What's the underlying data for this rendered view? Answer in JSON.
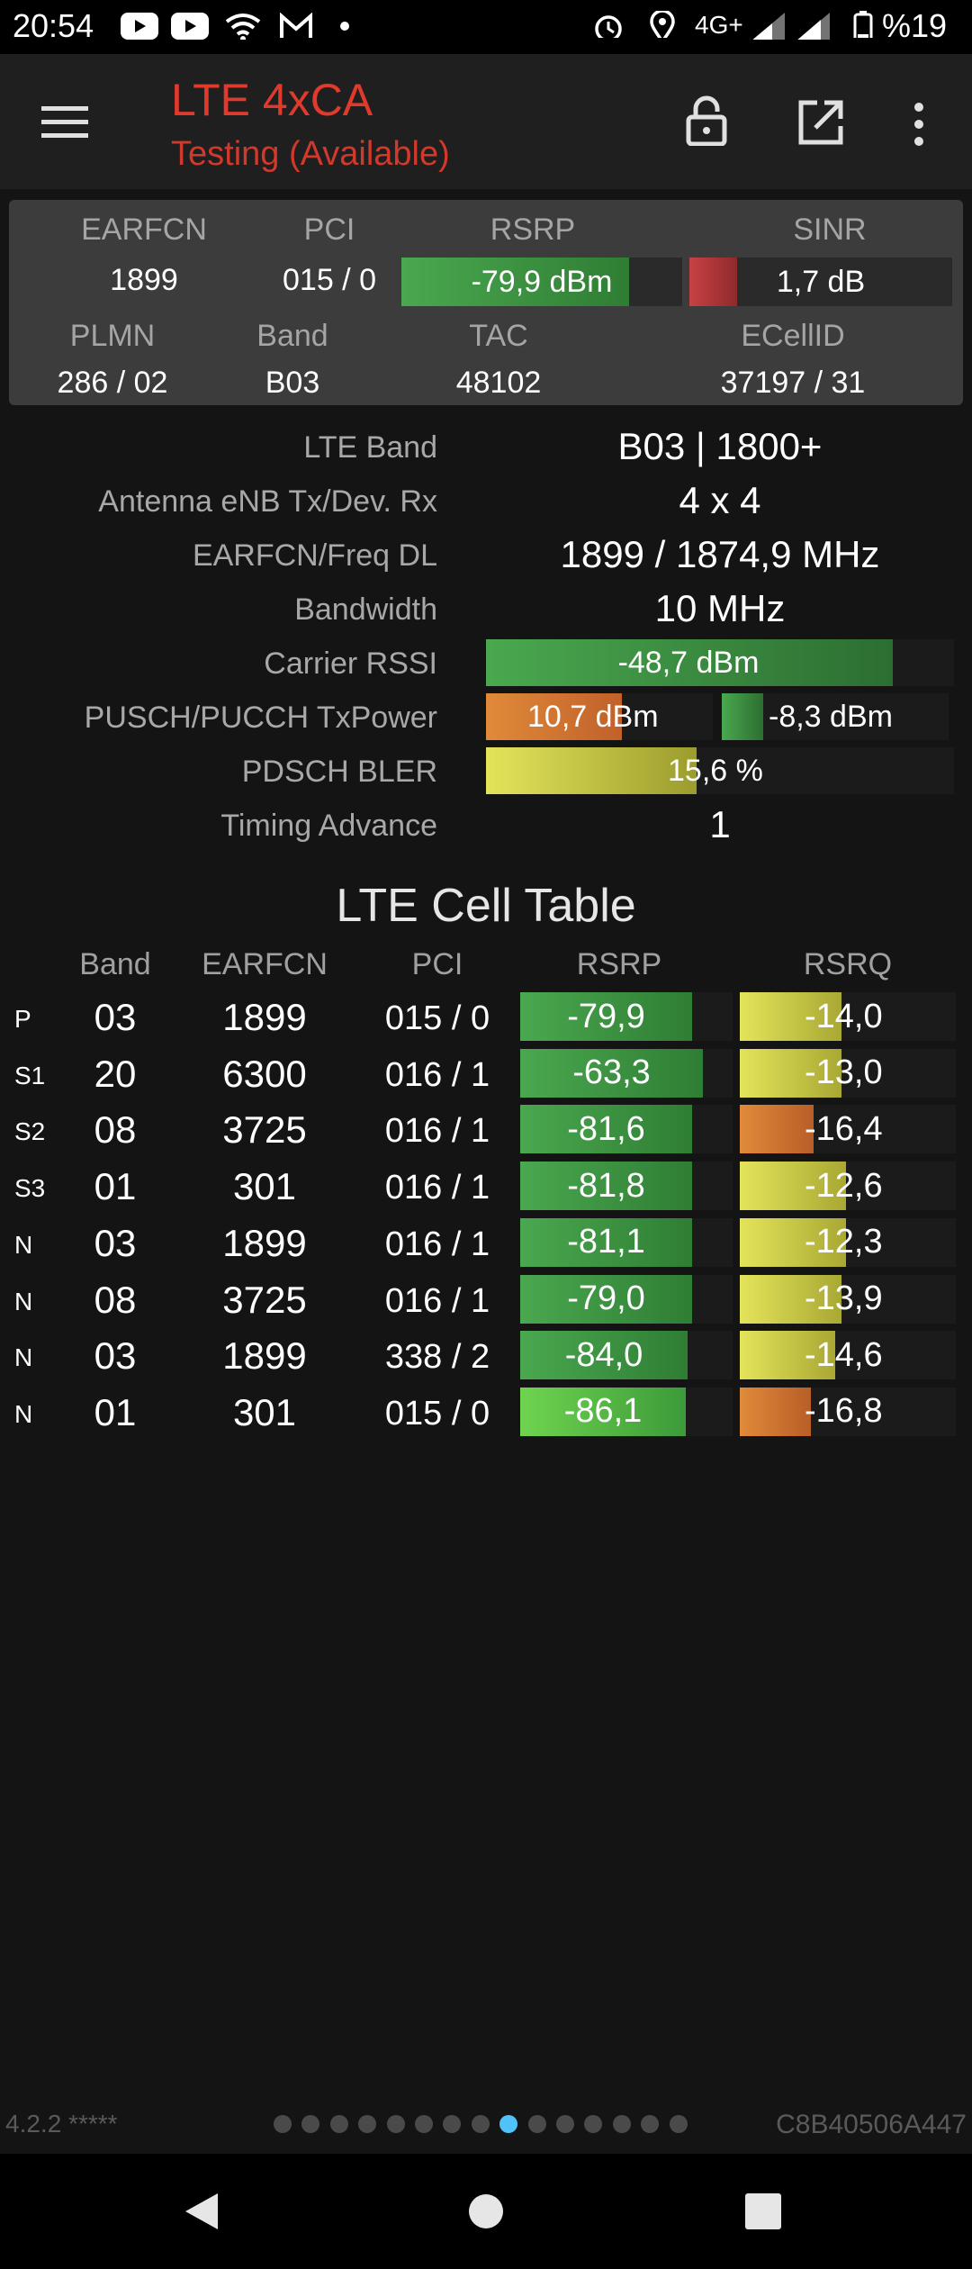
{
  "status_bar": {
    "time": "20:54",
    "network": "4G+",
    "battery": "%19",
    "icons": [
      "youtube-icon",
      "youtube-icon",
      "wifi-icon",
      "gmail-icon",
      "dot-icon",
      "alarm-icon",
      "location-icon",
      "signal-icon",
      "signal-icon",
      "battery-icon"
    ]
  },
  "app_bar": {
    "title": "LTE 4xCA",
    "subtitle": "Testing (Available)",
    "icons": [
      "menu-icon",
      "lock-icon",
      "open-external-icon",
      "more-vert-icon"
    ]
  },
  "header": {
    "labels": {
      "earfcn": "EARFCN",
      "pci": "PCI",
      "rsrp": "RSRP",
      "sinr": "SINR",
      "plmn": "PLMN",
      "band": "Band",
      "tac": "TAC",
      "ecellid": "ECellID"
    },
    "values": {
      "earfcn": "1899",
      "pci": "015 / 0",
      "rsrp": "-79,9 dBm",
      "sinr": "1,7 dB",
      "plmn": "286 / 02",
      "band": "B03",
      "tac": "48102",
      "ecellid": "37197 / 31"
    },
    "rsrp_fill": 0.81,
    "sinr_fill": 0.18
  },
  "info": {
    "lte_band_label": "LTE Band",
    "lte_band_value": "B03 | 1800+",
    "antenna_label": "Antenna eNB Tx/Dev. Rx",
    "antenna_value": "4 x 4",
    "earfcn_freq_label": "EARFCN/Freq DL",
    "earfcn_freq_value": "1899 / 1874,9 MHz",
    "bandwidth_label": "Bandwidth",
    "bandwidth_value": "10 MHz",
    "rssi_label": "Carrier RSSI",
    "rssi_value": "-48,7 dBm",
    "rssi_fill": 0.87,
    "txpower_label": "PUSCH/PUCCH TxPower",
    "pusch_value": "10,7 dBm",
    "pusch_fill": 0.6,
    "pucch_value": "-8,3 dBm",
    "pucch_fill": 0.28,
    "bler_label": "PDSCH BLER",
    "bler_value": "15,6 %",
    "bler_fill": 0.45,
    "ta_label": "Timing Advance",
    "ta_value": "1"
  },
  "cell_table": {
    "title": "LTE Cell Table",
    "headers": {
      "band": "Band",
      "earfcn": "EARFCN",
      "pci": "PCI",
      "rsrp": "RSRP",
      "rsrq": "RSRQ"
    },
    "rows": [
      {
        "tag": "P",
        "band": "03",
        "earfcn": "1899",
        "pci": "015 / 0",
        "rsrp": "-79,9",
        "rsrp_fill": 0.81,
        "rsrq": "-14,0",
        "rsrq_fill": 0.47,
        "rsrq_color": "yellow"
      },
      {
        "tag": "S1",
        "band": "20",
        "earfcn": "6300",
        "pci": "016 / 1",
        "rsrp": "-63,3",
        "rsrp_fill": 0.86,
        "rsrq": "-13,0",
        "rsrq_fill": 0.47,
        "rsrq_color": "yellow"
      },
      {
        "tag": "S2",
        "band": "08",
        "earfcn": "3725",
        "pci": "016 / 1",
        "rsrp": "-81,6",
        "rsrp_fill": 0.81,
        "rsrq": "-16,4",
        "rsrq_fill": 0.34,
        "rsrq_color": "orange"
      },
      {
        "tag": "S3",
        "band": "01",
        "earfcn": "301",
        "pci": "016 / 1",
        "rsrp": "-81,8",
        "rsrp_fill": 0.81,
        "rsrq": "-12,6",
        "rsrq_fill": 0.49,
        "rsrq_color": "yellow"
      },
      {
        "tag": "N",
        "band": "03",
        "earfcn": "1899",
        "pci": "016 / 1",
        "rsrp": "-81,1",
        "rsrp_fill": 0.81,
        "rsrq": "-12,3",
        "rsrq_fill": 0.49,
        "rsrq_color": "yellow"
      },
      {
        "tag": "N",
        "band": "08",
        "earfcn": "3725",
        "pci": "016 / 1",
        "rsrp": "-79,0",
        "rsrp_fill": 0.81,
        "rsrq": "-13,9",
        "rsrq_fill": 0.47,
        "rsrq_color": "yellow"
      },
      {
        "tag": "N",
        "band": "03",
        "earfcn": "1899",
        "pci": "338 / 2",
        "rsrp": "-84,0",
        "rsrp_fill": 0.79,
        "rsrq": "-14,6",
        "rsrq_fill": 0.44,
        "rsrq_color": "yellow"
      },
      {
        "tag": "N",
        "band": "01",
        "earfcn": "301",
        "pci": "015 / 0",
        "rsrp": "-86,1",
        "rsrp_fill": 0.78,
        "rsrq": "-16,8",
        "rsrq_fill": 0.33,
        "rsrq_color": "orange"
      }
    ]
  },
  "footer": {
    "version": "4.2.2 *****",
    "device_id": "C8B40506A447",
    "page_count": 15,
    "active_page": 8
  },
  "nav_bar": {
    "icons": [
      "back-icon",
      "home-icon",
      "recents-icon"
    ]
  },
  "colors": {
    "accent_red": "#e03a2c",
    "green_bar": "#3f9a44",
    "yellow_bar": "#d4d44a",
    "orange_bar": "#d9772e",
    "red_bar": "#c0393b",
    "active_dot": "#4fc3f7"
  }
}
